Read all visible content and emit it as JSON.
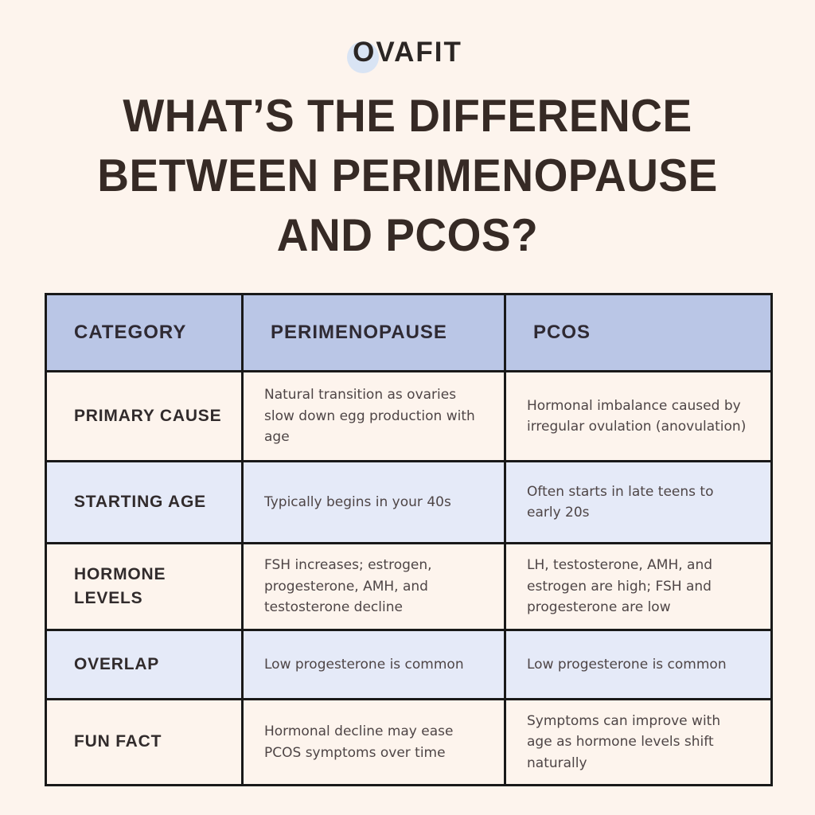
{
  "logo": {
    "first_letter": "O",
    "rest": "VAFIT",
    "accent_circle_color": "#d9e4f4"
  },
  "title": {
    "lines": [
      "WHAT’S THE DIFFERENCE",
      "BETWEEN PERIMENOPAUSE",
      "AND PCOS?"
    ]
  },
  "table": {
    "headers": [
      "CATEGORY",
      "PERIMENOPAUSE",
      "PCOS"
    ],
    "rows": [
      {
        "category": "PRIMARY CAUSE",
        "perimenopause": "Natural transition as ovaries slow down egg production with age",
        "pcos": "Hormonal imbalance caused by irregular ovulation (anovulation)"
      },
      {
        "category": "STARTING AGE",
        "perimenopause": "Typically begins in your 40s",
        "pcos": "Often starts in late teens to early 20s"
      },
      {
        "category": "HORMONE LEVELS",
        "perimenopause": "FSH increases; estrogen, progesterone, AMH, and testosterone decline",
        "pcos": "LH, testosterone, AMH, and estrogen are high; FSH and progesterone are low"
      },
      {
        "category": "OVERLAP",
        "perimenopause": "Low progesterone is common",
        "pcos": "Low progesterone is common"
      },
      {
        "category": "FUN FACT",
        "perimenopause": "Hormonal decline may ease PCOS symptoms over time",
        "pcos": "Symptoms can improve with age as hormone levels shift naturally"
      }
    ]
  },
  "colors": {
    "background": "#fdf4ed",
    "header_row": "#bac6e6",
    "alternate_row": "#e5eaf8",
    "border": "#191919",
    "title_text": "#362a25",
    "body_text": "#4e4546"
  }
}
